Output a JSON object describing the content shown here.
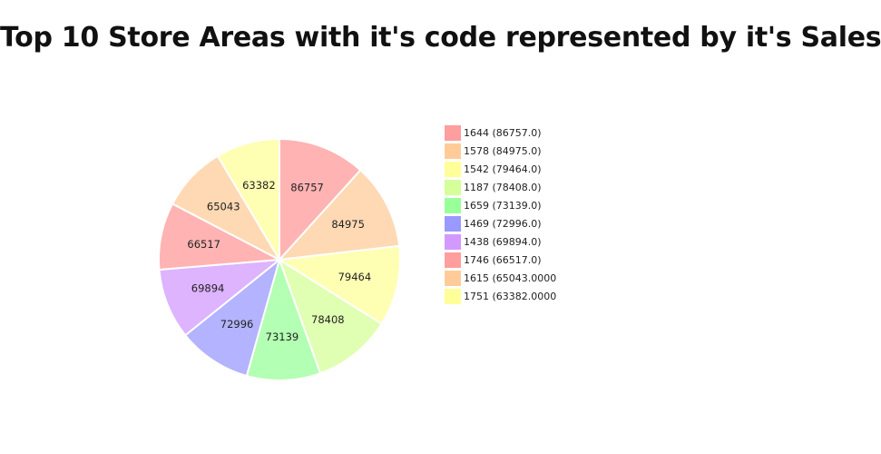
{
  "chart_data": {
    "type": "pie",
    "title": "Top 10 Store Areas with it's code represented by it's Sales",
    "categories": [
      "1644",
      "1578",
      "1542",
      "1187",
      "1659",
      "1469",
      "1438",
      "1746",
      "1615",
      "1751"
    ],
    "values": [
      86757,
      84975,
      79464,
      78408,
      73139,
      72996,
      69894,
      66517,
      65043,
      63382
    ],
    "slice_labels": [
      "86757",
      "84975",
      "79464",
      "78408",
      "73139",
      "72996",
      "69894",
      "66517",
      "65043",
      "63382"
    ],
    "legend_entries": [
      "1644 (86757.0)",
      "1578 (84975.0)",
      "1542 (79464.0)",
      "1187 (78408.0)",
      "1659 (73139.0)",
      "1469 (72996.0)",
      "1438 (69894.0)",
      "1746 (66517.0)",
      "1615 (65043.0000",
      "1751 (63382.0000"
    ],
    "slice_colors": [
      "#ffb3b3",
      "#ffd9b3",
      "#ffffb3",
      "#e0ffb3",
      "#b3ffb3",
      "#b3b3ff",
      "#deb3ff",
      "#ffb3b3",
      "#ffd9b3",
      "#ffffb3"
    ],
    "legend_colors": [
      "#ff9e9e",
      "#ffcc99",
      "#ffff99",
      "#d5ff99",
      "#99ff99",
      "#9999ff",
      "#d299ff",
      "#ff9e9e",
      "#ffcc99",
      "#ffff99"
    ],
    "start_angle": "12 o'clock",
    "direction": "clockwise",
    "legend_position": "right"
  }
}
